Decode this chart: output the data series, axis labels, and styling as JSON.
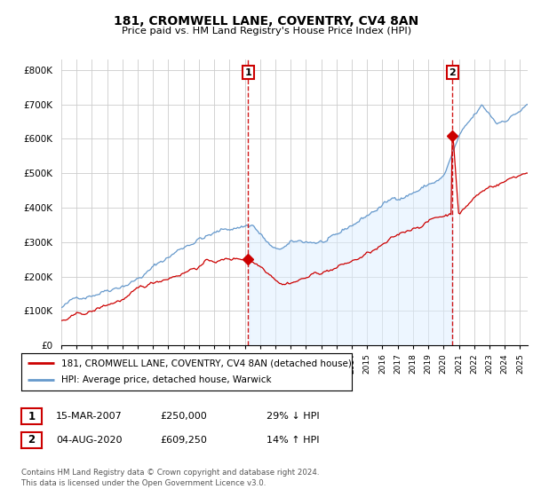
{
  "title": "181, CROMWELL LANE, COVENTRY, CV4 8AN",
  "subtitle": "Price paid vs. HM Land Registry's House Price Index (HPI)",
  "ylabel_ticks": [
    "£0",
    "£100K",
    "£200K",
    "£300K",
    "£400K",
    "£500K",
    "£600K",
    "£700K",
    "£800K"
  ],
  "ytick_vals": [
    0,
    100000,
    200000,
    300000,
    400000,
    500000,
    600000,
    700000,
    800000
  ],
  "ylim": [
    0,
    830000
  ],
  "xlim_start": 1995.0,
  "xlim_end": 2025.5,
  "legend_line1": "181, CROMWELL LANE, COVENTRY, CV4 8AN (detached house)",
  "legend_line2": "HPI: Average price, detached house, Warwick",
  "transaction1_label": "1",
  "transaction1_date": "15-MAR-2007",
  "transaction1_price": "£250,000",
  "transaction1_info": "29% ↓ HPI",
  "transaction2_label": "2",
  "transaction2_date": "04-AUG-2020",
  "transaction2_price": "£609,250",
  "transaction2_info": "14% ↑ HPI",
  "footer": "Contains HM Land Registry data © Crown copyright and database right 2024.\nThis data is licensed under the Open Government Licence v3.0.",
  "line_color_red": "#cc0000",
  "line_color_blue": "#6699cc",
  "fill_color_blue": "#ddeeff",
  "bg_color": "#ffffff",
  "grid_color": "#cccccc",
  "transaction1_x": 2007.21,
  "transaction1_y": 250000,
  "transaction2_x": 2020.59,
  "transaction2_y": 609250
}
